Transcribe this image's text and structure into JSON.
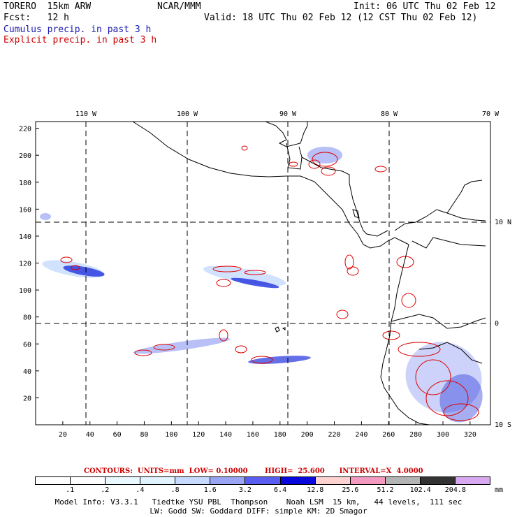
{
  "header": {
    "model": "TORERO  15km ARW",
    "org": "NCAR/MMM",
    "init": "Init: 06 UTC Thu 02 Feb 12",
    "fcst": "Fcst:   12 h",
    "valid": "Valid: 18 UTC Thu 02 Feb 12 (12 CST Thu 02 Feb 12)",
    "legend_cumulus": "Cumulus precip. in past 3 h",
    "legend_explicit": "Explicit precip. in past 3 h"
  },
  "map": {
    "top_longitudes": [
      "110 W",
      "100 W",
      "90 W",
      "80 W",
      "70 W"
    ],
    "right_latitudes": [
      "10 N",
      "0",
      "10 S"
    ],
    "x_ticks": [
      "20",
      "40",
      "60",
      "80",
      "100",
      "120",
      "140",
      "160",
      "180",
      "200",
      "220",
      "240",
      "260",
      "280",
      "300",
      "320"
    ],
    "y_ticks": [
      "220",
      "200",
      "180",
      "160",
      "140",
      "120",
      "100",
      "80",
      "60",
      "40",
      "20"
    ],
    "x_range": [
      0,
      335
    ],
    "y_range": [
      0,
      225
    ],
    "colors": {
      "cumulus": "#2233dd",
      "explicit": "#dd0000",
      "coast": "#000000"
    }
  },
  "contours": {
    "text": "CONTOURS:  UNITS=mm  LOW= 0.10000       HIGH=  25.600      INTERVAL=X  4.0000"
  },
  "colorbar": {
    "labels": [
      ".1",
      ".2",
      ".4",
      ".8",
      "1.6",
      "3.2",
      "6.4",
      "12.8",
      "25.6",
      "51.2",
      "102.4",
      "204.8"
    ],
    "unit": "mm",
    "colors": [
      "#ffffff",
      "#ffffff",
      "#eaf8ff",
      "#e0f3ff",
      "#c6dbff",
      "#9aa5f4",
      "#5a5ef0",
      "#0808dd",
      "#ffd2d2",
      "#f49ac0",
      "#b4b4b4",
      "#333333",
      "#d8a8f0"
    ]
  },
  "model_info": {
    "line1": "Model Info: V3.3.1   Tiedtke YSU PBL  Thompson    Noah LSM  15 km,   44 levels,  111 sec",
    "line2": "LW: Godd SW: Goddard DIFF: simple KM: 2D Smagor"
  }
}
